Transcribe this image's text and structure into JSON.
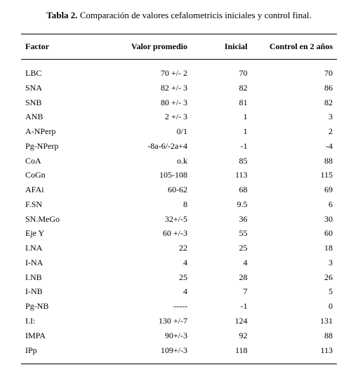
{
  "caption": {
    "label": "Tabla 2.",
    "text": "Comparación de valores cefalometricis iniciales y control final."
  },
  "columns": {
    "factor": "Factor",
    "valor": "Valor promedio",
    "inicial": "Inicial",
    "control": "Control en 2 años"
  },
  "rows": [
    {
      "factor": "LBC",
      "valor": "70 +/- 2",
      "inicial": "70",
      "control": "70"
    },
    {
      "factor": "SNA",
      "valor": "82 +/- 3",
      "inicial": "82",
      "control": "86"
    },
    {
      "factor": "SNB",
      "valor": "80 +/- 3",
      "inicial": "81",
      "control": "82"
    },
    {
      "factor": "ANB",
      "valor": "2 +/- 3",
      "inicial": "1",
      "control": "3"
    },
    {
      "factor": "A-NPerp",
      "valor": "0/1",
      "inicial": "1",
      "control": "2"
    },
    {
      "factor": "Pg-NPerp",
      "valor": "-8a-6/-2a+4",
      "inicial": "-1",
      "control": "-4"
    },
    {
      "factor": "CoA",
      "valor": "o.k",
      "inicial": "85",
      "control": "88"
    },
    {
      "factor": "CoGn",
      "valor": "105-108",
      "inicial": "113",
      "control": "115"
    },
    {
      "factor": "AFAi",
      "valor": "60-62",
      "inicial": "68",
      "control": "69"
    },
    {
      "factor": "F.SN",
      "valor": "8",
      "inicial": "9.5",
      "control": "6"
    },
    {
      "factor": "SN.MeGo",
      "valor": "32+/-5",
      "inicial": "36",
      "control": "30"
    },
    {
      "factor": "Eje Y",
      "valor": "60 +/-3",
      "inicial": "55",
      "control": "60"
    },
    {
      "factor": "I.NA",
      "valor": "22",
      "inicial": "25",
      "control": "18"
    },
    {
      "factor": "I-NA",
      "valor": "4",
      "inicial": "4",
      "control": "3"
    },
    {
      "factor": "I.NB",
      "valor": "25",
      "inicial": "28",
      "control": "26"
    },
    {
      "factor": "I-NB",
      "valor": "4",
      "inicial": "7",
      "control": "5"
    },
    {
      "factor": "Pg-NB",
      "valor": "-----",
      "inicial": "-1",
      "control": "0"
    },
    {
      "factor": "I.I:",
      "valor": "130 +/-7",
      "inicial": "124",
      "control": "131"
    },
    {
      "factor": "IMPA",
      "valor": "90+/-3",
      "inicial": "92",
      "control": "88"
    },
    {
      "factor": "IPp",
      "valor": "109+/-3",
      "inicial": "118",
      "control": "113"
    }
  ]
}
